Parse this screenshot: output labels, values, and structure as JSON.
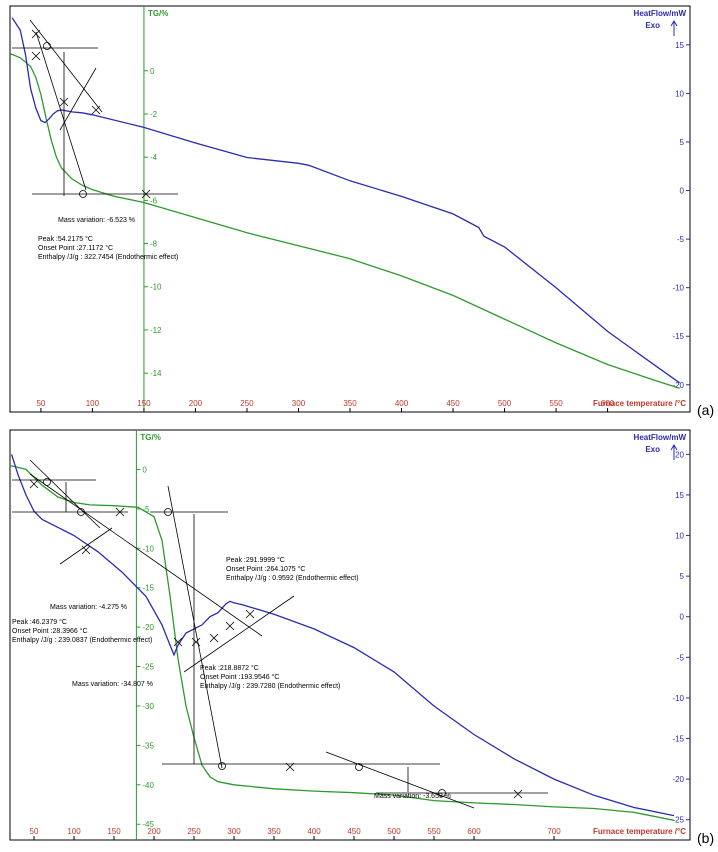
{
  "chart_data": [
    {
      "type": "line",
      "panel_label": "(a)",
      "xlabel": "Furnace temperature /°C",
      "y1label": "TG/%",
      "y2label": "HeatFlow/mW",
      "exo_label": "Exo",
      "xlim": [
        20,
        680
      ],
      "y1lim": [
        -15.8,
        3.0
      ],
      "y2lim": [
        -22.8,
        19.0
      ],
      "x_ticks": [
        50,
        100,
        150,
        200,
        250,
        300,
        350,
        400,
        450,
        500,
        550,
        600
      ],
      "y1_ticks": [
        0,
        -2,
        -4,
        -6,
        -8,
        -10,
        -12,
        -14
      ],
      "y2_ticks": [
        15,
        10,
        5,
        0,
        -5,
        -10,
        -15,
        -20
      ],
      "y1_axis_x": 150,
      "colors": {
        "tg": "#2e9a2e",
        "heatflow": "#2b2bb0",
        "tg_axis": "#2e9a2e",
        "tick_label": "#c0392b",
        "right_label": "#2b2bb0"
      },
      "series": [
        {
          "key": "tg",
          "axis": "y1",
          "x": [
            20,
            30,
            40,
            45,
            50,
            55,
            60,
            65,
            70,
            80,
            90,
            100,
            120,
            150,
            200,
            250,
            300,
            350,
            400,
            450,
            500,
            550,
            600,
            650,
            670
          ],
          "y": [
            0.8,
            0.6,
            0.2,
            -0.3,
            -1.1,
            -2.2,
            -3.2,
            -4.0,
            -4.5,
            -5.0,
            -5.3,
            -5.5,
            -5.8,
            -6.1,
            -6.8,
            -7.5,
            -8.1,
            -8.7,
            -9.5,
            -10.4,
            -11.5,
            -12.6,
            -13.6,
            -14.4,
            -14.7
          ]
        },
        {
          "key": "heatflow",
          "axis": "y2",
          "x": [
            22,
            30,
            35,
            40,
            45,
            50,
            54,
            58,
            62,
            66,
            70,
            80,
            90,
            100,
            150,
            200,
            250,
            300,
            310,
            350,
            400,
            450,
            475,
            480,
            500,
            550,
            600,
            650,
            670
          ],
          "y": [
            17.8,
            16.5,
            14.0,
            10.5,
            8.5,
            7.2,
            7.0,
            7.4,
            7.9,
            8.2,
            8.3,
            8.1,
            8.0,
            7.8,
            6.5,
            4.9,
            3.4,
            2.8,
            2.6,
            1.0,
            -0.6,
            -2.4,
            -3.8,
            -4.7,
            -5.8,
            -10.0,
            -14.5,
            -18.3,
            -19.8
          ]
        }
      ],
      "annotations": {
        "mass_variation": "Mass variation: -6.523 %",
        "peak": "Peak :54.2175 °C",
        "onset": "Onset Point :27.1172 °C",
        "enthalpy": "Enthalpy /J/g : 322.7454 (Endothermic effect)"
      }
    },
    {
      "type": "line",
      "panel_label": "(b)",
      "xlabel": "Furnace temperature /°C",
      "y1label": "TG/%",
      "y2label": "HeatFlow/mW",
      "exo_label": "Exo",
      "xlim": [
        20,
        870
      ],
      "y1lim": [
        -47.0,
        5.0
      ],
      "y2lim": [
        -27.5,
        23.0
      ],
      "x_ticks": [
        50,
        100,
        150,
        200,
        250,
        300,
        350,
        400,
        450,
        500,
        550,
        600,
        700
      ],
      "y1_ticks": [
        0,
        -5,
        -10,
        -15,
        -20,
        -25,
        -30,
        -35,
        -40,
        -45
      ],
      "y2_ticks": [
        20,
        15,
        10,
        5,
        0,
        -5,
        -10,
        -15,
        -20,
        -25
      ],
      "y1_axis_x": 178,
      "colors": {
        "tg": "#2e9a2e",
        "heatflow": "#2b2bb0",
        "tg_axis": "#2e9a2e",
        "tick_label": "#c0392b",
        "right_label": "#2b2bb0"
      },
      "series": [
        {
          "key": "tg",
          "axis": "y1",
          "x": [
            20,
            40,
            60,
            80,
            100,
            120,
            150,
            180,
            200,
            210,
            220,
            230,
            240,
            250,
            260,
            270,
            280,
            300,
            350,
            400,
            450,
            500,
            550,
            600,
            650,
            700,
            750,
            800,
            850
          ],
          "y": [
            0.5,
            0.0,
            -2.0,
            -3.5,
            -4.2,
            -4.5,
            -4.6,
            -4.8,
            -6.0,
            -9.0,
            -16.0,
            -24.0,
            -30.0,
            -34.0,
            -37.5,
            -39.0,
            -39.6,
            -40.0,
            -40.5,
            -40.8,
            -41.0,
            -41.3,
            -42.0,
            -42.3,
            -42.5,
            -42.8,
            -43.0,
            -43.5,
            -44.5
          ]
        },
        {
          "key": "heatflow",
          "axis": "y2",
          "x": [
            22,
            30,
            40,
            50,
            60,
            70,
            80,
            90,
            100,
            130,
            160,
            190,
            210,
            220,
            225,
            230,
            240,
            250,
            260,
            270,
            280,
            290,
            295,
            300,
            310,
            350,
            400,
            450,
            500,
            550,
            600,
            650,
            700,
            750,
            800,
            850
          ],
          "y": [
            20.0,
            17.5,
            15.0,
            13.0,
            12.0,
            11.5,
            11.0,
            10.5,
            10.0,
            8.0,
            5.5,
            2.5,
            -1.0,
            -3.5,
            -4.7,
            -3.5,
            -2.0,
            -1.5,
            -1.0,
            0.0,
            0.5,
            1.6,
            1.9,
            1.7,
            1.5,
            0.3,
            -1.5,
            -3.8,
            -6.8,
            -11.0,
            -14.5,
            -17.5,
            -20.0,
            -22.0,
            -23.5,
            -24.5
          ]
        }
      ],
      "annotations": {
        "peak1": "Peak :291.9999 °C",
        "onset1": "Onset Point :264.1075 °C",
        "enthalpy1": "Enthalpy /J/g : 0.9592 (Endothermic effect)",
        "mass1": "Mass variation: -4.275 %",
        "peak2": "Peak :46.2379 °C",
        "onset2": "Onset Point :28.3966 °C",
        "enthalpy2": "Enthalpy /J/g : 239.0837 (Endothermic effect)",
        "mass2": "Mass variation: -34.807 %",
        "peak3": "Peak :218.8872 °C",
        "onset3": "Onset Point :193.9546 °C",
        "enthalpy3": "Enthalpy /J/g : 239.7280 (Endothermic effect)",
        "mass3": "Mass variation: -3.653 %"
      }
    }
  ]
}
